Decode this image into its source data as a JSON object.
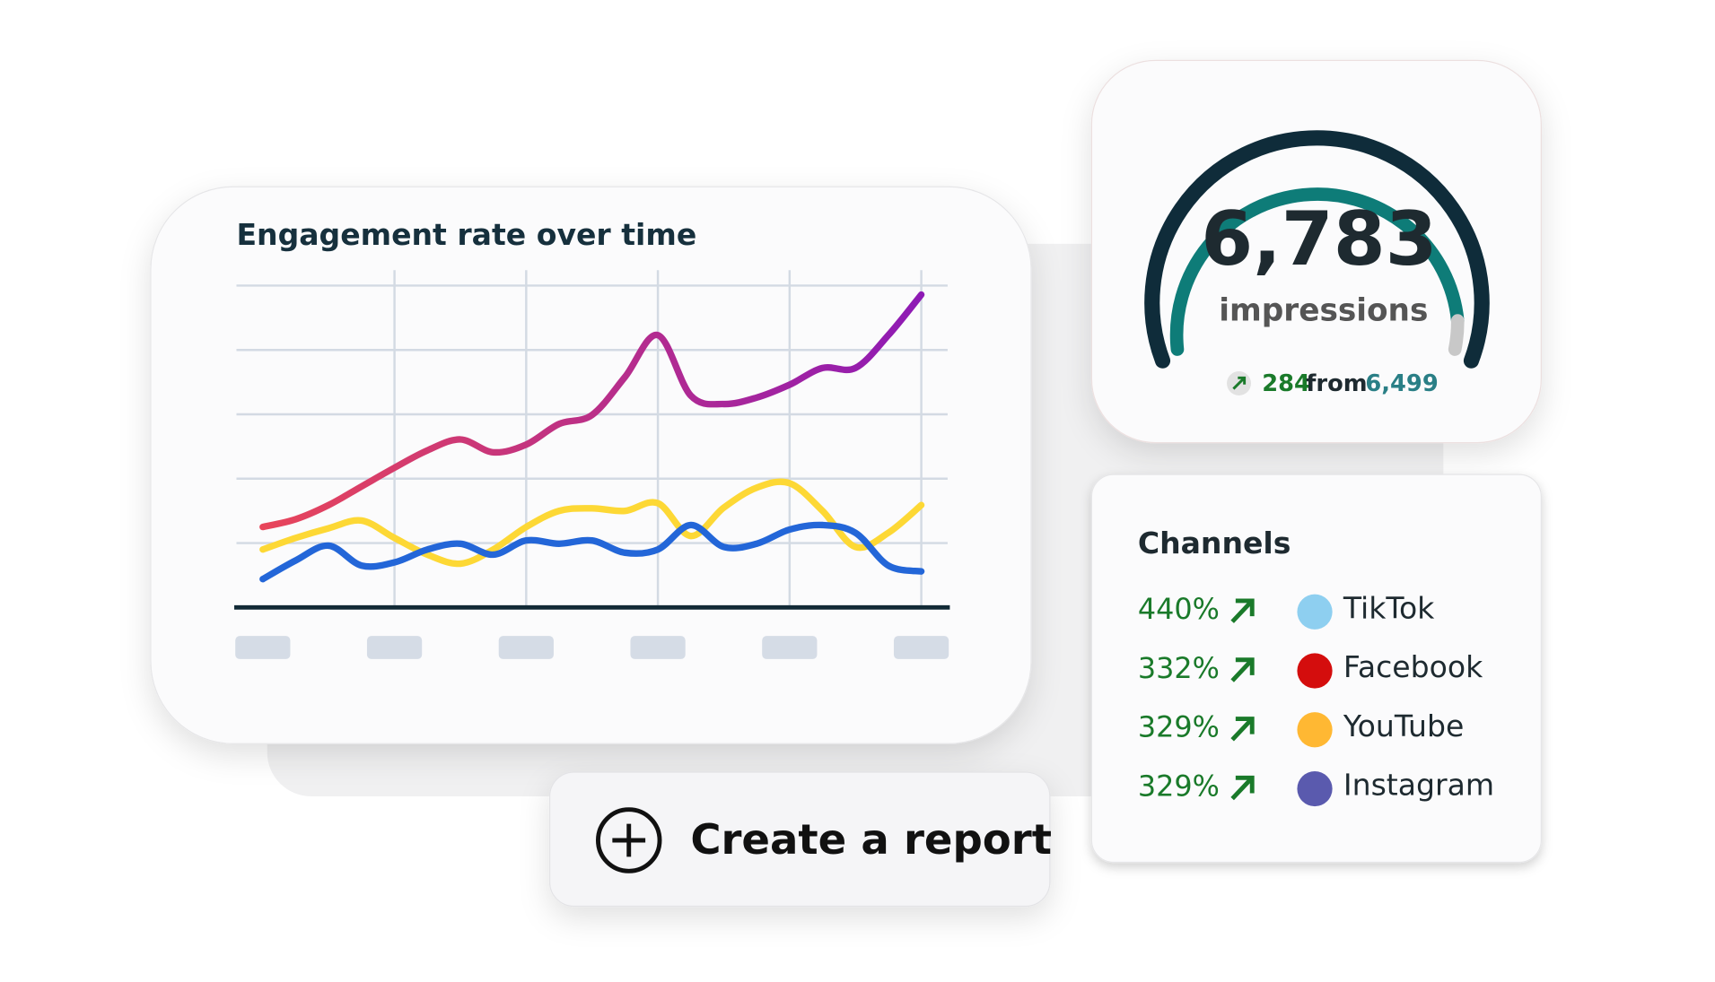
{
  "chart_data": {
    "type": "line",
    "title": "Engagement rate over time",
    "x": [
      0,
      0.25,
      0.5,
      0.75,
      1,
      1.25,
      1.5,
      1.75,
      2,
      2.25,
      2.5,
      2.75,
      3,
      3.25,
      3.5,
      3.75,
      4,
      4.25,
      4.5,
      4.75,
      5
    ],
    "xlim": [
      -0.2,
      5.2
    ],
    "xticks": [
      0,
      1,
      2,
      3,
      4,
      5
    ],
    "ylim": [
      0,
      5
    ],
    "yticks": [
      0,
      1,
      2,
      3,
      4,
      5
    ],
    "grid": true,
    "series": [
      {
        "color": [
          "#e8455a",
          "#8e1ab5"
        ],
        "values": [
          1.25,
          1.37,
          1.59,
          1.88,
          2.17,
          2.44,
          2.61,
          2.41,
          2.53,
          2.85,
          2.99,
          3.58,
          4.23,
          3.29,
          3.16,
          3.26,
          3.46,
          3.72,
          3.72,
          4.23,
          4.86
        ]
      },
      {
        "color": "#fdd835",
        "values": [
          0.9,
          1.08,
          1.23,
          1.35,
          1.08,
          0.82,
          0.68,
          0.9,
          1.25,
          1.5,
          1.54,
          1.5,
          1.62,
          1.11,
          1.55,
          1.86,
          1.93,
          1.5,
          0.94,
          1.16,
          1.59
        ]
      },
      {
        "color": "#2366d8",
        "values": [
          0.44,
          0.73,
          0.96,
          0.65,
          0.7,
          0.9,
          0.99,
          0.82,
          1.04,
          0.99,
          1.04,
          0.85,
          0.9,
          1.28,
          0.94,
          0.99,
          1.21,
          1.28,
          1.16,
          0.65,
          0.56
        ]
      }
    ]
  },
  "gauge": {
    "value": "6,783",
    "label": "impressions",
    "change": "284",
    "from_text": "from",
    "from_value": "6,499"
  },
  "channels": {
    "title": "Channels",
    "items": [
      {
        "change": "440%",
        "name": "TikTok",
        "color": "#8ecff0"
      },
      {
        "change": "332%",
        "name": "Facebook",
        "color": "#d40d0d"
      },
      {
        "change": "329%",
        "name": "YouTube",
        "color": "#ffb833"
      },
      {
        "change": "329%",
        "name": "Instagram",
        "color": "#5a5aae"
      }
    ]
  },
  "button": {
    "label": "Create a report"
  }
}
